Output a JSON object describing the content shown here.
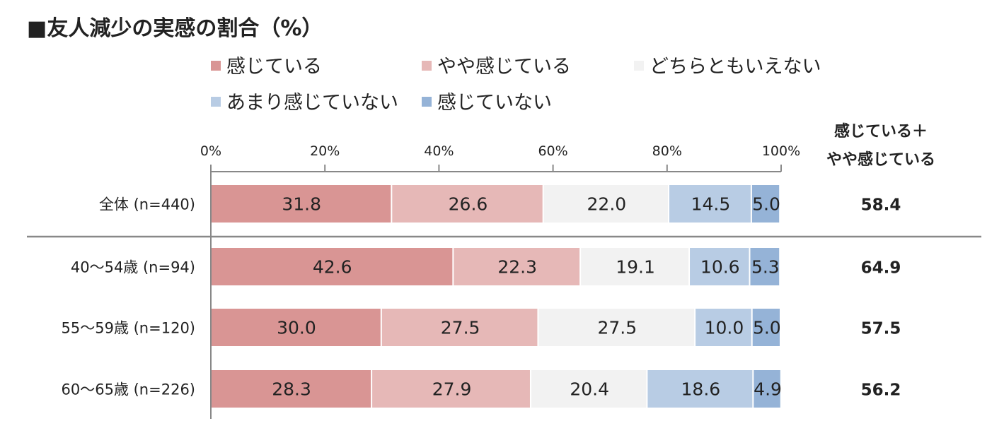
{
  "chart_data": {
    "type": "bar",
    "orientation": "horizontal-stacked-100",
    "title": "■友人減少の実感の割合（%）",
    "categories": [
      "全体 (n=440)",
      "40～54歳 (n=94)",
      "55～59歳 (n=120)",
      "60～65歳 (n=226)"
    ],
    "series": [
      {
        "name": "感じている",
        "color": "#D99594",
        "values": [
          31.8,
          42.6,
          30.0,
          28.3
        ]
      },
      {
        "name": "やや感じている",
        "color": "#E6B8B7",
        "values": [
          26.6,
          22.3,
          27.5,
          27.9
        ]
      },
      {
        "name": "どちらともいえない",
        "color": "#F2F2F2",
        "values": [
          22.0,
          19.1,
          27.5,
          20.4
        ]
      },
      {
        "name": "あまり感じていない",
        "color": "#B8CCE4",
        "values": [
          14.5,
          10.6,
          10.0,
          18.6
        ]
      },
      {
        "name": "感じていない",
        "color": "#95B3D7",
        "values": [
          5.0,
          5.3,
          5.0,
          4.9
        ]
      }
    ],
    "xticks": [
      "0%",
      "20%",
      "40%",
      "60%",
      "80%",
      "100%"
    ],
    "xlim": [
      0,
      100
    ],
    "legend": "top",
    "summary_header": [
      "感じている＋",
      "やや感じている"
    ],
    "summary_values": [
      "58.4",
      "64.9",
      "57.5",
      "56.2"
    ]
  }
}
